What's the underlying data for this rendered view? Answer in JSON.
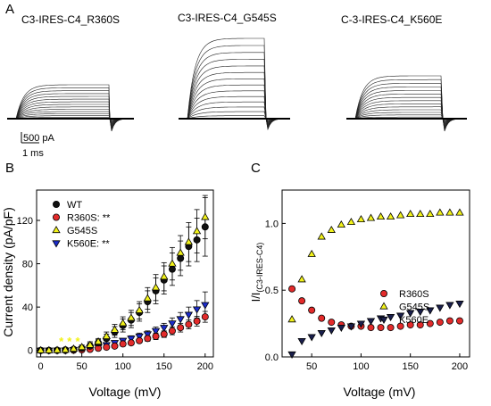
{
  "figure": {
    "panel_a": {
      "letter": "A",
      "titles": [
        "C3-IRES-C4_R360S",
        "C3-IRES-C4_G545S",
        "C-3-IRES-C4_K560E"
      ],
      "scalebar": {
        "current_label": "500 pA",
        "time_label": "1 ms"
      }
    }
  },
  "chart_data": [
    {
      "panel": "B",
      "type": "scatter",
      "xlabel": "Voltage (mV)",
      "ylabel": "Current density (pA/pF)",
      "xlim": [
        -5,
        210
      ],
      "ylim": [
        -6,
        148
      ],
      "xticks": [
        0,
        50,
        100,
        150,
        200
      ],
      "yticks": [
        0,
        40,
        80,
        120
      ],
      "legend_position": "top-left",
      "x": [
        0,
        10,
        20,
        30,
        40,
        50,
        60,
        70,
        80,
        90,
        100,
        110,
        120,
        130,
        140,
        150,
        160,
        170,
        180,
        190,
        200
      ],
      "series": [
        {
          "name": "WT",
          "marker": "circle",
          "color": "#111111",
          "values": [
            0,
            0,
            0.2,
            0.5,
            1,
            2,
            4,
            7,
            11,
            17,
            23,
            28,
            35,
            45,
            55,
            65,
            75,
            85,
            96,
            102,
            114
          ],
          "errors": [
            1,
            1,
            1,
            1,
            1.5,
            2,
            3,
            3,
            4,
            5,
            6,
            7,
            8,
            10,
            12,
            13,
            15,
            16,
            18,
            20,
            27
          ]
        },
        {
          "name": "R360S: **",
          "marker": "circle",
          "color": "#e32b2b",
          "values": [
            0,
            0,
            0,
            0,
            0.2,
            0.5,
            1,
            2,
            3,
            4,
            6,
            7,
            9,
            11,
            13,
            15,
            18,
            21,
            24,
            27,
            31
          ],
          "errors": [
            0.5,
            0.5,
            0.5,
            0.5,
            0.5,
            1,
            1,
            1,
            1.5,
            1.5,
            2,
            2,
            2,
            2.5,
            3,
            3,
            3.5,
            4,
            4,
            4.5,
            5
          ]
        },
        {
          "name": "G545S",
          "marker": "triangle-up",
          "color": "#f2f21a",
          "values": [
            0,
            0,
            0.2,
            0.5,
            1.5,
            3,
            5,
            8,
            13,
            19,
            25,
            30,
            37,
            48,
            58,
            68,
            80,
            90,
            100,
            110,
            123
          ],
          "errors": [
            1,
            1,
            1,
            1,
            1.5,
            2,
            3,
            3,
            4,
            5,
            6,
            7,
            8,
            10,
            12,
            13,
            15,
            16,
            18,
            20,
            20
          ]
        },
        {
          "name": "K560E: **",
          "marker": "triangle-down",
          "color": "#1c2ccb",
          "values": [
            0,
            0,
            0,
            0,
            0.5,
            1,
            2,
            3,
            5,
            7,
            9,
            11,
            13,
            15,
            18,
            21,
            25,
            29,
            33,
            38,
            42
          ],
          "errors": [
            0.5,
            0.5,
            0.5,
            0.5,
            0.5,
            1,
            1,
            1,
            1.5,
            2,
            2,
            2.5,
            3,
            3,
            3.5,
            4,
            5,
            6,
            7,
            8,
            12
          ]
        }
      ],
      "annotations": [
        {
          "text": "*",
          "x": 25,
          "y": 8,
          "color": "#f2f21a"
        },
        {
          "text": "*",
          "x": 35,
          "y": 8,
          "color": "#f2f21a"
        },
        {
          "text": "*",
          "x": 45,
          "y": 8,
          "color": "#f2f21a"
        }
      ]
    },
    {
      "panel": "C",
      "type": "scatter",
      "xlabel": "Voltage (mV)",
      "ylabel": "I/I(C3-IRES-C4)",
      "xlim": [
        20,
        210
      ],
      "ylim": [
        0,
        1.25
      ],
      "xticks": [
        50,
        100,
        150,
        200
      ],
      "yticks": [
        0.0,
        0.5,
        1.0
      ],
      "legend_position": "center-right",
      "x": [
        30,
        40,
        50,
        60,
        70,
        80,
        90,
        100,
        110,
        120,
        130,
        140,
        150,
        160,
        170,
        180,
        190,
        200
      ],
      "series": [
        {
          "name": "R360S",
          "marker": "circle",
          "color": "#e32b2b",
          "values": [
            0.51,
            0.42,
            0.35,
            0.29,
            0.26,
            0.24,
            0.23,
            0.23,
            0.22,
            0.22,
            0.22,
            0.23,
            0.24,
            0.24,
            0.25,
            0.26,
            0.27,
            0.27
          ]
        },
        {
          "name": "G545S",
          "marker": "triangle-up",
          "color": "#f2f21a",
          "values": [
            0.28,
            0.58,
            0.77,
            0.9,
            0.95,
            0.99,
            1.01,
            1.03,
            1.04,
            1.05,
            1.05,
            1.06,
            1.07,
            1.07,
            1.07,
            1.08,
            1.08,
            1.08
          ]
        },
        {
          "name": "K560E",
          "marker": "triangle-down",
          "color": "#1a1f4d",
          "values": [
            0.02,
            0.12,
            0.15,
            0.18,
            0.2,
            0.22,
            0.23,
            0.25,
            0.27,
            0.29,
            0.3,
            0.31,
            0.33,
            0.34,
            0.35,
            0.37,
            0.39,
            0.4
          ]
        }
      ]
    }
  ]
}
